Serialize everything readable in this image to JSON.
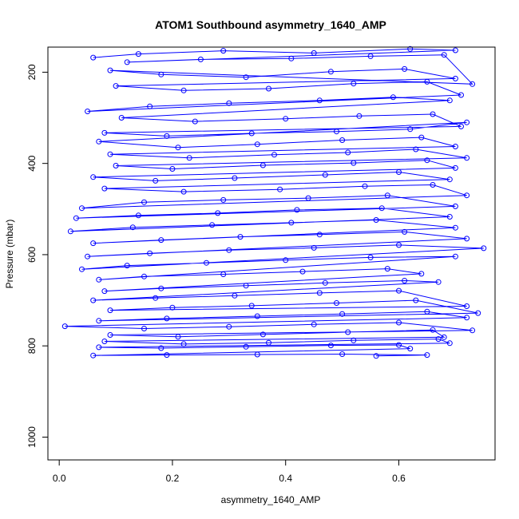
{
  "chart_data": {
    "type": "line",
    "title": "ATOM1 Southbound asymmetry_1640_AMP",
    "xlabel": "asymmetry_1640_AMP",
    "ylabel": "Pressure (mbar)",
    "xlim": [
      -0.02,
      0.77
    ],
    "ylim": [
      1050,
      145
    ],
    "y_inverted": true,
    "x_ticks": [
      0.0,
      0.2,
      0.4,
      0.6
    ],
    "x_tick_labels": [
      "0.0",
      "0.2",
      "0.4",
      "0.6"
    ],
    "y_ticks": [
      200,
      400,
      600,
      800,
      1000
    ],
    "y_tick_labels": [
      "200",
      "400",
      "600",
      "800",
      "1000"
    ],
    "grid": false,
    "legend": "none",
    "series_color": "#0000ff",
    "marker": "open-circle",
    "series": [
      {
        "points": [
          [
            0.06,
            168
          ],
          [
            0.14,
            160
          ],
          [
            0.29,
            153
          ],
          [
            0.45,
            158
          ],
          [
            0.62,
            149
          ],
          [
            0.7,
            152
          ],
          [
            0.12,
            178
          ],
          [
            0.25,
            172
          ],
          [
            0.41,
            170
          ],
          [
            0.55,
            165
          ],
          [
            0.68,
            162
          ],
          [
            0.73,
            226
          ],
          [
            0.09,
            196
          ],
          [
            0.18,
            205
          ],
          [
            0.33,
            211
          ],
          [
            0.48,
            199
          ],
          [
            0.61,
            193
          ],
          [
            0.7,
            214
          ],
          [
            0.1,
            230
          ],
          [
            0.22,
            240
          ],
          [
            0.37,
            236
          ],
          [
            0.52,
            225
          ],
          [
            0.65,
            221
          ],
          [
            0.71,
            250
          ],
          [
            0.05,
            286
          ],
          [
            0.16,
            275
          ],
          [
            0.3,
            268
          ],
          [
            0.46,
            262
          ],
          [
            0.59,
            255
          ],
          [
            0.69,
            262
          ],
          [
            0.11,
            300
          ],
          [
            0.24,
            308
          ],
          [
            0.4,
            302
          ],
          [
            0.53,
            296
          ],
          [
            0.66,
            292
          ],
          [
            0.71,
            319
          ],
          [
            0.08,
            333
          ],
          [
            0.19,
            340
          ],
          [
            0.34,
            334
          ],
          [
            0.49,
            330
          ],
          [
            0.62,
            325
          ],
          [
            0.72,
            310
          ],
          [
            0.07,
            352
          ],
          [
            0.21,
            365
          ],
          [
            0.35,
            358
          ],
          [
            0.5,
            349
          ],
          [
            0.64,
            343
          ],
          [
            0.7,
            363
          ],
          [
            0.09,
            380
          ],
          [
            0.23,
            388
          ],
          [
            0.38,
            381
          ],
          [
            0.51,
            376
          ],
          [
            0.63,
            369
          ],
          [
            0.72,
            388
          ],
          [
            0.1,
            405
          ],
          [
            0.2,
            412
          ],
          [
            0.36,
            404
          ],
          [
            0.52,
            399
          ],
          [
            0.65,
            393
          ],
          [
            0.7,
            410
          ],
          [
            0.06,
            430
          ],
          [
            0.17,
            438
          ],
          [
            0.31,
            432
          ],
          [
            0.47,
            425
          ],
          [
            0.6,
            419
          ],
          [
            0.69,
            435
          ],
          [
            0.08,
            455
          ],
          [
            0.22,
            462
          ],
          [
            0.39,
            457
          ],
          [
            0.54,
            450
          ],
          [
            0.66,
            447
          ],
          [
            0.72,
            470
          ],
          [
            0.04,
            498
          ],
          [
            0.15,
            485
          ],
          [
            0.29,
            480
          ],
          [
            0.44,
            476
          ],
          [
            0.58,
            470
          ],
          [
            0.7,
            494
          ],
          [
            0.03,
            520
          ],
          [
            0.14,
            514
          ],
          [
            0.28,
            509
          ],
          [
            0.42,
            502
          ],
          [
            0.57,
            498
          ],
          [
            0.69,
            517
          ],
          [
            0.02,
            549
          ],
          [
            0.13,
            540
          ],
          [
            0.27,
            535
          ],
          [
            0.41,
            530
          ],
          [
            0.56,
            524
          ],
          [
            0.7,
            541
          ],
          [
            0.06,
            575
          ],
          [
            0.18,
            568
          ],
          [
            0.32,
            561
          ],
          [
            0.46,
            556
          ],
          [
            0.61,
            550
          ],
          [
            0.72,
            565
          ],
          [
            0.05,
            604
          ],
          [
            0.16,
            597
          ],
          [
            0.3,
            590
          ],
          [
            0.45,
            585
          ],
          [
            0.6,
            579
          ],
          [
            0.75,
            586
          ],
          [
            0.04,
            632
          ],
          [
            0.12,
            624
          ],
          [
            0.26,
            618
          ],
          [
            0.4,
            612
          ],
          [
            0.55,
            606
          ],
          [
            0.7,
            604
          ],
          [
            0.07,
            655
          ],
          [
            0.15,
            648
          ],
          [
            0.29,
            643
          ],
          [
            0.43,
            637
          ],
          [
            0.58,
            631
          ],
          [
            0.64,
            642
          ],
          [
            0.08,
            680
          ],
          [
            0.18,
            674
          ],
          [
            0.33,
            668
          ],
          [
            0.47,
            662
          ],
          [
            0.61,
            657
          ],
          [
            0.67,
            660
          ],
          [
            0.06,
            700
          ],
          [
            0.17,
            695
          ],
          [
            0.31,
            690
          ],
          [
            0.46,
            684
          ],
          [
            0.6,
            679
          ],
          [
            0.72,
            713
          ],
          [
            0.09,
            722
          ],
          [
            0.2,
            716
          ],
          [
            0.34,
            712
          ],
          [
            0.49,
            706
          ],
          [
            0.63,
            700
          ],
          [
            0.74,
            728
          ],
          [
            0.07,
            745
          ],
          [
            0.19,
            740
          ],
          [
            0.35,
            735
          ],
          [
            0.5,
            730
          ],
          [
            0.65,
            725
          ],
          [
            0.72,
            738
          ],
          [
            0.01,
            757
          ],
          [
            0.15,
            762
          ],
          [
            0.3,
            758
          ],
          [
            0.45,
            753
          ],
          [
            0.6,
            749
          ],
          [
            0.73,
            766
          ],
          [
            0.09,
            776
          ],
          [
            0.21,
            780
          ],
          [
            0.36,
            775
          ],
          [
            0.51,
            770
          ],
          [
            0.66,
            765
          ],
          [
            0.68,
            781
          ],
          [
            0.08,
            790
          ],
          [
            0.22,
            796
          ],
          [
            0.37,
            793
          ],
          [
            0.52,
            788
          ],
          [
            0.67,
            785
          ],
          [
            0.69,
            794
          ],
          [
            0.07,
            803
          ],
          [
            0.18,
            805
          ],
          [
            0.33,
            802
          ],
          [
            0.48,
            799
          ],
          [
            0.6,
            798
          ],
          [
            0.62,
            806
          ],
          [
            0.06,
            821
          ],
          [
            0.19,
            820
          ],
          [
            0.35,
            819
          ],
          [
            0.5,
            818
          ],
          [
            0.65,
            820
          ],
          [
            0.56,
            822
          ]
        ]
      }
    ]
  }
}
